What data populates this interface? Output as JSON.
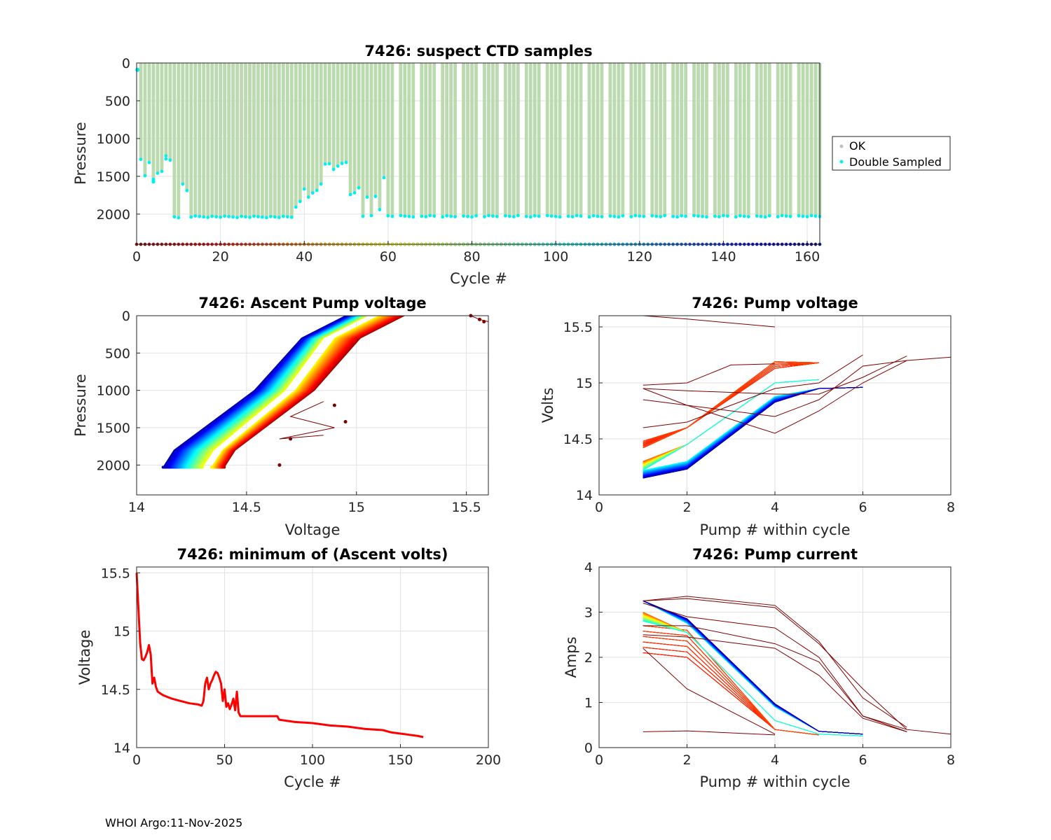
{
  "footer": "WHOI Argo:11-Nov-2025",
  "chart_data": [
    {
      "id": "ctd",
      "type": "bar",
      "title": "7426: suspect CTD samples",
      "xlabel": "Cycle #",
      "ylabel": "Pressure",
      "xlim": [
        0,
        163
      ],
      "ylim": [
        0,
        2400
      ],
      "y_reversed": true,
      "xticks": [
        0,
        20,
        40,
        60,
        80,
        100,
        120,
        140,
        160
      ],
      "yticks": [
        0,
        500,
        1000,
        1500,
        2000
      ],
      "bar_color": "#bbdaaf",
      "legend": [
        {
          "label": "OK",
          "color": "#bfbfbf"
        },
        {
          "label": "Double Sampled",
          "color": "#00f0f0"
        }
      ],
      "legend_position": "outside-right",
      "max_pressure_by_cycle": [
        [
          1,
          1270
        ],
        [
          2,
          1480
        ],
        [
          3,
          1300
        ],
        [
          4,
          1560
        ],
        [
          5,
          1450
        ],
        [
          6,
          1420
        ],
        [
          7,
          1230
        ],
        [
          8,
          1280
        ],
        [
          9,
          2025
        ],
        [
          10,
          2030
        ],
        [
          11,
          1600
        ],
        [
          12,
          1680
        ],
        [
          13,
          2025
        ],
        [
          36,
          2030
        ],
        [
          37,
          2030
        ],
        [
          38,
          1890
        ],
        [
          39,
          1830
        ],
        [
          40,
          1660
        ],
        [
          41,
          1760
        ],
        [
          42,
          1720
        ],
        [
          43,
          1680
        ],
        [
          44,
          1590
        ],
        [
          45,
          1320
        ],
        [
          46,
          1330
        ],
        [
          47,
          1400
        ],
        [
          48,
          1350
        ],
        [
          49,
          1330
        ],
        [
          50,
          1310
        ],
        [
          51,
          1730
        ],
        [
          52,
          1700
        ],
        [
          53,
          1650
        ],
        [
          54,
          2020
        ],
        [
          55,
          1760
        ],
        [
          56,
          2020
        ],
        [
          57,
          1760
        ],
        [
          58,
          1930
        ],
        [
          59,
          1500
        ],
        [
          60,
          2020
        ],
        [
          163,
          2020
        ]
      ],
      "double_sampled_points": "cyan markers at the deepest sample of each profile (~2020-2050 dbar); near-surface cyan points at cycle 0 (~90 dbar) and cycle 4 (~1540-1570 dbar), cycle 7 (~1270 dbar)",
      "cycle_color_strip": "markers at bottom of axis colored by cycle (jet colormap, dark red to dark blue)"
    },
    {
      "id": "ascent",
      "type": "line",
      "title": "7426: Ascent Pump voltage",
      "xlabel": "Voltage",
      "ylabel": "Pressure",
      "xlim": [
        14,
        15.6
      ],
      "ylim": [
        0,
        2400
      ],
      "y_reversed": true,
      "xticks": [
        14,
        14.5,
        15,
        15.5
      ],
      "yticks": [
        0,
        500,
        1000,
        1500,
        2000
      ],
      "colormap": "jet by cycle (early cycles dark red, late cycles dark blue)",
      "series_envelope": {
        "late_cycles_blue": {
          "surface_voltage": 14.95,
          "deep_voltage": 14.12,
          "deep_pressure": 2030
        },
        "mid_cycles_green": {
          "surface_voltage": 15.02,
          "deep_voltage": 14.22,
          "deep_pressure": 2030
        },
        "early_cycles_red": {
          "surface_voltage": 15.22,
          "deep_voltage": 14.4,
          "deep_pressure": 2030
        },
        "outliers_dark_red": [
          [
            15.52,
            0
          ],
          [
            15.56,
            50
          ],
          [
            15.58,
            80
          ],
          [
            14.9,
            1200
          ],
          [
            14.95,
            1420
          ],
          [
            14.7,
            1650
          ],
          [
            14.65,
            2000
          ]
        ]
      }
    },
    {
      "id": "pumpv",
      "type": "line",
      "title": "7426: Pump voltage",
      "xlabel": "Pump # within cycle",
      "ylabel": "Volts",
      "xlim": [
        0,
        8
      ],
      "ylim": [
        14,
        15.6
      ],
      "xticks": [
        0,
        2,
        4,
        6,
        8
      ],
      "yticks": [
        14,
        14.5,
        15,
        15.5
      ],
      "colormap": "jet by cycle",
      "series_groups": [
        {
          "name": "late cycles (blue)",
          "x": [
            1,
            2,
            4,
            5,
            6
          ],
          "y": [
            14.13,
            14.2,
            14.8,
            14.95,
            14.96
          ]
        },
        {
          "name": "mid cycles (green)",
          "x": [
            1,
            2,
            4,
            5
          ],
          "y": [
            14.25,
            14.4,
            14.92,
            15.0
          ]
        },
        {
          "name": "early cycles (red/orange)",
          "x": [
            1,
            2,
            4,
            5
          ],
          "y": [
            14.45,
            14.62,
            15.15,
            15.2
          ]
        },
        {
          "name": "outlier cycle",
          "x": [
            1,
            2,
            4
          ],
          "y": [
            15.6,
            15.55,
            15.5
          ]
        },
        {
          "name": "long cycles (dark red)",
          "x": [
            1,
            2,
            4,
            5,
            6,
            7,
            8
          ],
          "y": [
            14.9,
            14.75,
            14.55,
            14.75,
            15.0,
            15.2,
            15.23
          ]
        }
      ]
    },
    {
      "id": "minv",
      "type": "line",
      "title": "7426: minimum of (Ascent volts)",
      "xlabel": "Cycle #",
      "ylabel": "Voltage",
      "xlim": [
        0,
        200
      ],
      "ylim": [
        14,
        15.55
      ],
      "xticks": [
        0,
        50,
        100,
        150,
        200
      ],
      "yticks": [
        14,
        14.5,
        15,
        15.5
      ],
      "series": [
        {
          "name": "min ascent voltage",
          "color": "#ff0000",
          "x": [
            0,
            1,
            2,
            3,
            4,
            5,
            6,
            7,
            8,
            9,
            10,
            11,
            12,
            15,
            20,
            25,
            30,
            35,
            37,
            38,
            39,
            40,
            41,
            42,
            43,
            44,
            45,
            46,
            47,
            48,
            49,
            50,
            51,
            52,
            53,
            54,
            55,
            56,
            57,
            58,
            59,
            60,
            70,
            80,
            81,
            90,
            100,
            110,
            120,
            130,
            140,
            145,
            150,
            155,
            160,
            163
          ],
          "y": [
            15.5,
            15.2,
            14.9,
            14.76,
            14.75,
            14.78,
            14.82,
            14.88,
            14.8,
            14.55,
            14.6,
            14.52,
            14.48,
            14.45,
            14.42,
            14.4,
            14.38,
            14.37,
            14.36,
            14.4,
            14.55,
            14.6,
            14.5,
            14.55,
            14.58,
            14.62,
            14.65,
            14.64,
            14.6,
            14.55,
            14.4,
            14.5,
            14.35,
            14.38,
            14.33,
            14.37,
            14.42,
            14.32,
            14.48,
            14.3,
            14.27,
            14.27,
            14.27,
            14.27,
            14.24,
            14.22,
            14.21,
            14.19,
            14.18,
            14.16,
            14.15,
            14.13,
            14.12,
            14.11,
            14.1,
            14.09
          ]
        }
      ]
    },
    {
      "id": "pumpc",
      "type": "line",
      "title": "7426: Pump current",
      "xlabel": "Pump # within cycle",
      "ylabel": "Amps",
      "xlim": [
        0,
        8
      ],
      "ylim": [
        0,
        4
      ],
      "xticks": [
        0,
        2,
        4,
        6,
        8
      ],
      "yticks": [
        0,
        1,
        2,
        3,
        4
      ],
      "colormap": "jet by cycle",
      "series_groups": [
        {
          "name": "late cycles (blue)",
          "x": [
            1,
            2,
            4,
            5,
            6
          ],
          "y": [
            3.25,
            2.85,
            0.95,
            0.38,
            0.3
          ]
        },
        {
          "name": "mid cycles (green/cyan)",
          "x": [
            1,
            2,
            4,
            5,
            6
          ],
          "y": [
            3.1,
            2.6,
            0.6,
            0.3,
            0.26
          ]
        },
        {
          "name": "early cycles (orange)",
          "x": [
            1,
            2,
            4,
            5
          ],
          "y": [
            2.5,
            2.2,
            0.4,
            0.28
          ]
        },
        {
          "name": "long cycles (dark red)",
          "x": [
            1,
            2,
            4,
            5,
            6,
            7
          ],
          "y": [
            3.25,
            3.35,
            3.15,
            2.35,
            1.1,
            0.45
          ]
        },
        {
          "name": "low outlier (dark red)",
          "x": [
            1,
            2,
            4
          ],
          "y": [
            0.35,
            0.35,
            0.28
          ]
        }
      ]
    }
  ]
}
